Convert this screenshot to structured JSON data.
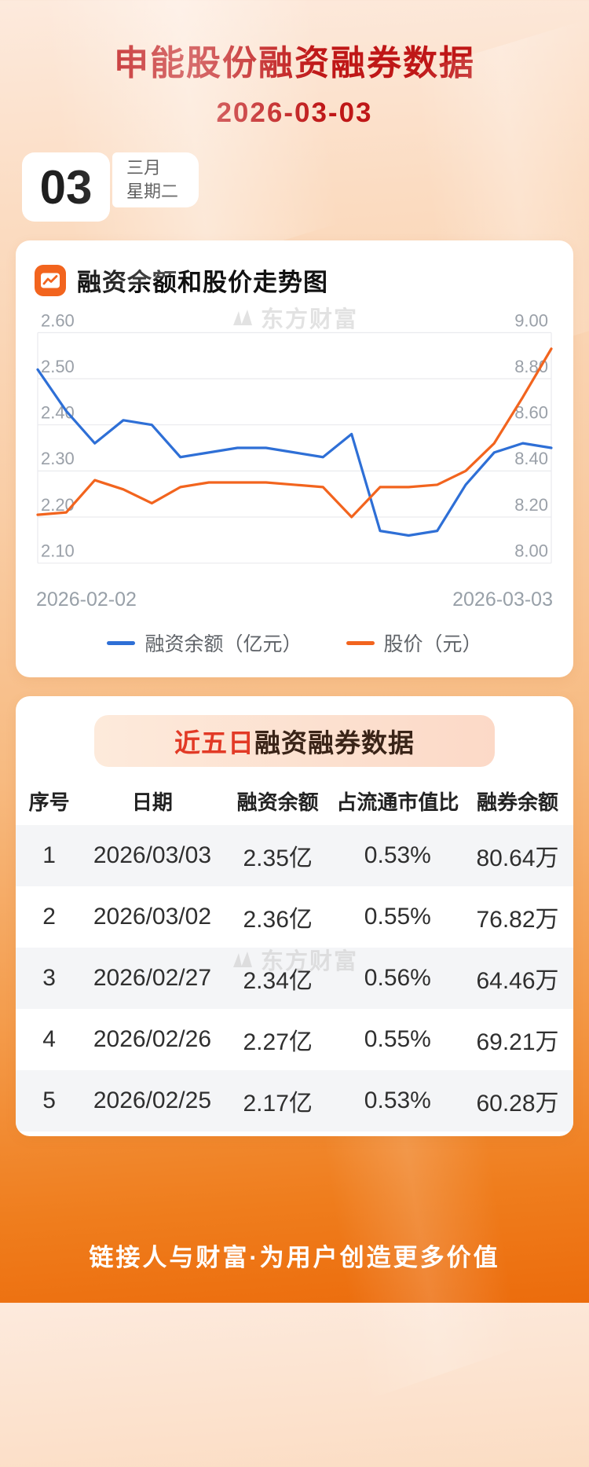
{
  "page": {
    "title": "申能股份融资融券数据",
    "date": "2026-03-03",
    "watermark": "东方财富",
    "footer": "链接人与财富·为用户创造更多价值"
  },
  "date_badge": {
    "day": "03",
    "month": "三月",
    "weekday": "星期二"
  },
  "chart_section": {
    "heading": "融资余额和股价走势图"
  },
  "chart_data": {
    "type": "line",
    "title": "融资余额和股价走势图",
    "grid": true,
    "legend_position": "bottom",
    "x_range_labels": [
      "2026-02-02",
      "2026-03-03"
    ],
    "left_axis": {
      "min": 2.1,
      "max": 2.6,
      "ticks": [
        "2.60",
        "2.50",
        "2.40",
        "2.30",
        "2.20",
        "2.10"
      ]
    },
    "right_axis": {
      "min": 8.0,
      "max": 9.0,
      "ticks": [
        "9.00",
        "8.80",
        "8.60",
        "8.40",
        "8.20",
        "8.00"
      ]
    },
    "series": [
      {
        "name": "融资余额（亿元）",
        "axis": "left",
        "color": "#2e6fd6",
        "values": [
          2.52,
          2.43,
          2.36,
          2.41,
          2.4,
          2.33,
          2.34,
          2.35,
          2.35,
          2.34,
          2.33,
          2.38,
          2.17,
          2.16,
          2.17,
          2.27,
          2.34,
          2.36,
          2.35
        ]
      },
      {
        "name": "股价（元）",
        "axis": "right",
        "color": "#f2641e",
        "values": [
          8.21,
          8.22,
          8.36,
          8.32,
          8.26,
          8.33,
          8.35,
          8.35,
          8.35,
          8.34,
          8.33,
          8.2,
          8.33,
          8.33,
          8.34,
          8.4,
          8.52,
          8.72,
          8.93
        ]
      }
    ]
  },
  "table_section": {
    "heading_highlight": "近五日",
    "heading_rest": "融资融券数据",
    "headers": [
      "序号",
      "日期",
      "融资余额",
      "占流通市值比",
      "融券余额"
    ],
    "col_widths": [
      "12%",
      "25%",
      "20%",
      "23%",
      "20%"
    ],
    "rows": [
      [
        "1",
        "2026/03/03",
        "2.35亿",
        "0.53%",
        "80.64万"
      ],
      [
        "2",
        "2026/03/02",
        "2.36亿",
        "0.55%",
        "76.82万"
      ],
      [
        "3",
        "2026/02/27",
        "2.34亿",
        "0.56%",
        "64.46万"
      ],
      [
        "4",
        "2026/02/26",
        "2.27亿",
        "0.55%",
        "69.21万"
      ],
      [
        "5",
        "2026/02/25",
        "2.17亿",
        "0.53%",
        "60.28万"
      ]
    ]
  },
  "colors": {
    "title_red": "#bf1717",
    "line_blue": "#2e6fd6",
    "line_orange": "#f2641e",
    "pill_highlight_red": "#e23a26",
    "background_orange": "#ec6c0c",
    "footer_text": "#ffffff"
  }
}
